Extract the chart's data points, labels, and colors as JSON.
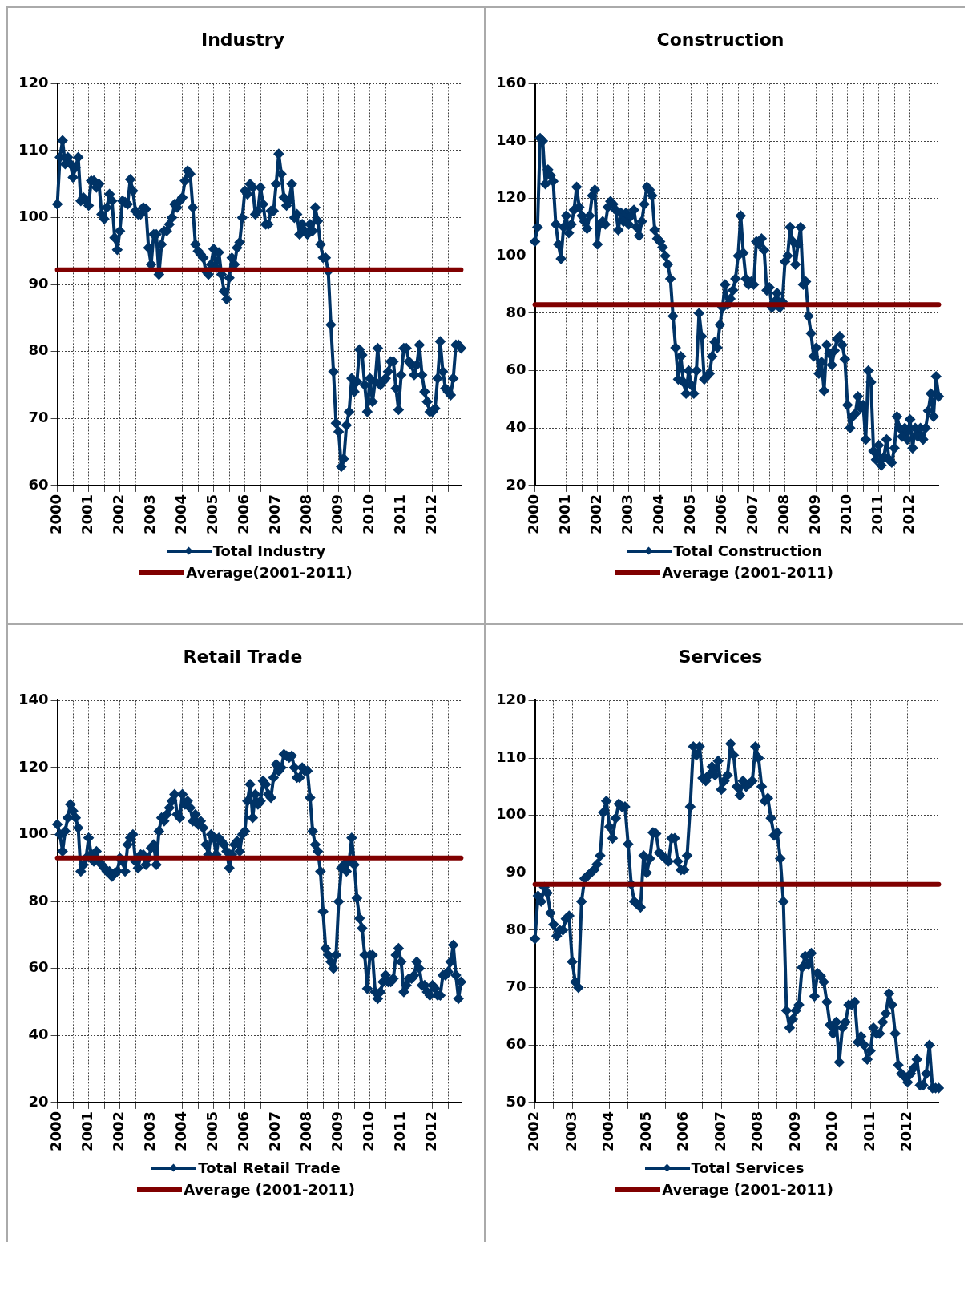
{
  "chart_data": [
    {
      "type": "line",
      "title": "Industry",
      "categories": [
        "2000",
        null,
        null,
        null,
        null,
        null,
        null,
        null,
        null,
        null,
        null,
        null,
        "2001",
        null,
        null,
        null,
        null,
        null,
        null,
        null,
        null,
        null,
        null,
        null,
        "2002",
        null,
        null,
        null,
        null,
        null,
        null,
        null,
        null,
        null,
        null,
        null,
        "2003",
        null,
        null,
        null,
        null,
        null,
        null,
        null,
        null,
        null,
        null,
        null,
        "2004",
        null,
        null,
        null,
        null,
        null,
        null,
        null,
        null,
        null,
        null,
        null,
        "2005",
        null,
        null,
        null,
        null,
        null,
        null,
        null,
        null,
        null,
        null,
        null,
        "2006",
        null,
        null,
        null,
        null,
        null,
        null,
        null,
        null,
        null,
        null,
        null,
        "2007",
        null,
        null,
        null,
        null,
        null,
        null,
        null,
        null,
        null,
        null,
        null,
        "2008",
        null,
        null,
        null,
        null,
        null,
        null,
        null,
        null,
        null,
        null,
        null,
        "2009",
        null,
        null,
        null,
        null,
        null,
        null,
        null,
        null,
        null,
        null,
        null,
        "2010",
        null,
        null,
        null,
        null,
        null,
        null,
        null,
        null,
        null,
        null,
        null,
        "2011",
        null,
        null,
        null,
        null,
        null,
        null,
        null,
        null,
        null,
        null,
        null,
        "2012",
        null,
        null,
        null,
        null,
        null,
        null,
        null,
        null,
        null,
        null,
        null
      ],
      "series": [
        {
          "name": "Total Industry",
          "color": "#003366",
          "values": [
            102,
            109,
            111.5,
            108,
            109,
            108,
            106,
            107.5,
            109,
            102.5,
            103,
            102.5,
            101.8,
            105.5,
            105.5,
            104.5,
            105,
            100.5,
            99.8,
            101.5,
            103.5,
            102.5,
            97,
            95.2,
            98,
            102.5,
            102.3,
            102,
            105.7,
            104,
            101,
            100.5,
            100.5,
            101.5,
            101.3,
            95.5,
            93,
            97.5,
            97.5,
            91.5,
            96,
            98,
            98,
            99,
            100,
            102,
            101.5,
            102.5,
            103,
            105.5,
            107,
            106.5,
            101.5,
            96,
            95,
            94.5,
            94,
            92,
            91.5,
            93,
            95.3,
            92.5,
            94.8,
            91.5,
            89,
            87.8,
            91,
            94,
            93,
            95.5,
            96.3,
            100,
            104,
            103.5,
            105,
            104.5,
            100.5,
            101,
            104.5,
            102,
            99,
            99,
            101,
            101,
            105,
            109.5,
            106.5,
            103,
            101.8,
            102.5,
            105,
            100,
            100.5,
            97.5,
            99,
            98,
            97.5,
            99,
            98,
            101.5,
            99.5,
            96,
            94,
            94,
            92,
            84,
            77,
            69.3,
            68,
            62.8,
            64,
            69,
            71,
            76,
            74,
            75.5,
            80.3,
            79.5,
            75,
            71,
            76,
            72.5,
            75.5,
            80.5,
            75,
            75.5,
            76,
            77,
            78.5,
            78.5,
            74.5,
            71.3,
            76.5,
            80.5,
            80.5,
            78.5,
            78,
            76.5,
            78,
            81,
            76.5,
            74,
            72.5,
            71,
            71,
            71.5,
            76,
            81.5,
            77,
            74.5,
            74,
            73.5,
            76,
            81,
            81,
            80.5
          ]
        }
      ],
      "ref_lines": [
        {
          "axis": "y",
          "value": 92.2,
          "label": "Average(2001-2011)",
          "color": "#800000"
        }
      ],
      "ylim": [
        60,
        120
      ],
      "yticks": [
        60,
        70,
        80,
        90,
        100,
        110,
        120
      ],
      "grid": true,
      "legend": "bottom",
      "marker": "diamond"
    },
    {
      "type": "line",
      "title": "Construction",
      "categories": [
        "2000",
        null,
        null,
        null,
        null,
        null,
        null,
        null,
        null,
        null,
        null,
        null,
        "2001",
        null,
        null,
        null,
        null,
        null,
        null,
        null,
        null,
        null,
        null,
        null,
        "2002",
        null,
        null,
        null,
        null,
        null,
        null,
        null,
        null,
        null,
        null,
        null,
        "2003",
        null,
        null,
        null,
        null,
        null,
        null,
        null,
        null,
        null,
        null,
        null,
        "2004",
        null,
        null,
        null,
        null,
        null,
        null,
        null,
        null,
        null,
        null,
        null,
        "2005",
        null,
        null,
        null,
        null,
        null,
        null,
        null,
        null,
        null,
        null,
        null,
        "2006",
        null,
        null,
        null,
        null,
        null,
        null,
        null,
        null,
        null,
        null,
        null,
        "2007",
        null,
        null,
        null,
        null,
        null,
        null,
        null,
        null,
        null,
        null,
        null,
        "2008",
        null,
        null,
        null,
        null,
        null,
        null,
        null,
        null,
        null,
        null,
        null,
        "2009",
        null,
        null,
        null,
        null,
        null,
        null,
        null,
        null,
        null,
        null,
        null,
        "2010",
        null,
        null,
        null,
        null,
        null,
        null,
        null,
        null,
        null,
        null,
        null,
        "2011",
        null,
        null,
        null,
        null,
        null,
        null,
        null,
        null,
        null,
        null,
        null,
        "2012",
        null,
        null,
        null,
        null,
        null,
        null,
        null,
        null,
        null,
        null,
        null
      ],
      "series": [
        {
          "name": "Total Construction",
          "color": "#003366",
          "values": [
            105,
            110,
            141,
            140,
            125,
            130,
            128,
            126,
            111,
            104,
            99,
            110,
            114,
            108,
            111,
            116,
            124,
            117,
            114,
            112,
            109.5,
            114,
            121,
            123,
            104,
            111,
            112,
            111,
            117,
            119,
            118,
            116,
            109,
            115,
            112,
            115,
            111,
            114,
            116,
            110,
            107,
            112,
            118,
            124,
            123,
            121,
            109,
            106,
            105,
            103,
            100,
            97,
            92,
            79,
            68,
            57,
            65,
            56,
            52,
            60,
            55,
            52,
            60,
            80,
            72,
            57,
            58,
            59,
            65,
            70,
            68,
            76,
            82,
            90,
            83,
            85,
            88,
            92,
            100,
            114,
            101,
            92,
            90,
            91,
            90,
            105,
            104,
            106,
            102,
            88,
            89,
            82,
            84,
            87,
            82,
            84,
            98,
            100,
            110,
            105,
            97,
            104,
            110,
            90,
            91,
            79,
            73,
            65,
            68,
            59,
            63,
            53,
            69,
            66,
            62,
            67,
            71,
            72,
            69,
            64,
            48,
            40,
            44,
            45,
            51,
            47,
            48,
            36,
            60,
            56,
            32,
            29,
            34,
            27,
            30,
            36,
            29,
            28,
            33,
            44,
            40,
            37,
            40,
            36,
            43,
            33,
            40,
            37,
            40,
            36,
            40,
            46,
            52,
            44,
            58,
            51
          ]
        }
      ],
      "ref_lines": [
        {
          "axis": "y",
          "value": 83,
          "label": "Average (2001-2011)",
          "color": "#800000"
        }
      ],
      "ylim": [
        20,
        160
      ],
      "yticks": [
        20,
        40,
        60,
        80,
        100,
        120,
        140,
        160
      ],
      "grid": true,
      "legend": "bottom",
      "marker": "diamond"
    },
    {
      "type": "line",
      "title": "Retail Trade",
      "categories": [
        "2000",
        null,
        null,
        null,
        null,
        null,
        null,
        null,
        null,
        null,
        null,
        null,
        "2001",
        null,
        null,
        null,
        null,
        null,
        null,
        null,
        null,
        null,
        null,
        null,
        "2002",
        null,
        null,
        null,
        null,
        null,
        null,
        null,
        null,
        null,
        null,
        null,
        "2003",
        null,
        null,
        null,
        null,
        null,
        null,
        null,
        null,
        null,
        null,
        null,
        "2004",
        null,
        null,
        null,
        null,
        null,
        null,
        null,
        null,
        null,
        null,
        null,
        "2005",
        null,
        null,
        null,
        null,
        null,
        null,
        null,
        null,
        null,
        null,
        null,
        "2006",
        null,
        null,
        null,
        null,
        null,
        null,
        null,
        null,
        null,
        null,
        null,
        "2007",
        null,
        null,
        null,
        null,
        null,
        null,
        null,
        null,
        null,
        null,
        null,
        "2008",
        null,
        null,
        null,
        null,
        null,
        null,
        null,
        null,
        null,
        null,
        null,
        "2009",
        null,
        null,
        null,
        null,
        null,
        null,
        null,
        null,
        null,
        null,
        null,
        "2010",
        null,
        null,
        null,
        null,
        null,
        null,
        null,
        null,
        null,
        null,
        null,
        "2011",
        null,
        null,
        null,
        null,
        null,
        null,
        null,
        null,
        null,
        null,
        null,
        "2012",
        null,
        null,
        null,
        null,
        null,
        null,
        null,
        null,
        null,
        null,
        null
      ],
      "series": [
        {
          "name": "Total Retail Trade",
          "color": "#003366",
          "values": [
            103,
            100,
            95,
            101,
            105,
            109,
            107,
            105,
            102,
            89,
            91,
            93,
            99,
            94,
            92,
            95,
            92,
            91,
            90,
            89,
            89,
            87.5,
            88.5,
            89,
            93,
            92,
            89,
            97,
            99,
            100,
            92,
            90,
            94,
            94,
            91,
            93,
            96,
            97,
            91,
            101,
            105,
            104,
            106,
            108,
            110,
            112,
            106,
            105,
            112,
            109,
            110,
            108,
            104,
            106,
            103,
            104,
            102,
            97,
            94,
            100,
            99,
            94,
            99,
            98,
            97,
            95,
            90,
            94,
            97,
            98,
            95,
            100,
            101,
            110,
            115,
            105,
            112,
            109,
            110,
            116,
            115,
            112,
            111,
            117,
            121,
            119,
            120,
            124,
            123.5,
            123,
            123.5,
            120,
            117,
            117,
            120,
            119,
            119,
            111,
            101,
            97,
            95,
            89,
            77,
            66,
            64,
            62,
            60,
            64,
            80,
            90,
            91,
            89,
            92,
            99,
            91,
            81,
            75,
            72,
            64,
            54,
            64,
            64,
            53,
            51,
            53,
            56,
            58,
            56,
            56,
            57,
            64,
            66,
            62,
            53,
            55,
            57,
            57,
            58,
            62,
            60,
            55,
            55,
            53,
            52,
            55,
            54,
            52,
            52,
            58,
            58,
            59,
            62,
            67,
            58,
            51,
            56
          ]
        }
      ],
      "ref_lines": [
        {
          "axis": "y",
          "value": 93,
          "label": "Average (2001-2011)",
          "color": "#800000"
        }
      ],
      "ylim": [
        20,
        140
      ],
      "yticks": [
        20,
        40,
        60,
        80,
        100,
        120,
        140
      ],
      "grid": true,
      "legend": "bottom",
      "marker": "diamond"
    },
    {
      "type": "line",
      "title": "Services",
      "categories": [
        "2002",
        null,
        null,
        null,
        null,
        null,
        null,
        null,
        null,
        null,
        null,
        null,
        "2003",
        null,
        null,
        null,
        null,
        null,
        null,
        null,
        null,
        null,
        null,
        null,
        "2004",
        null,
        null,
        null,
        null,
        null,
        null,
        null,
        null,
        null,
        null,
        null,
        "2005",
        null,
        null,
        null,
        null,
        null,
        null,
        null,
        null,
        null,
        null,
        null,
        "2006",
        null,
        null,
        null,
        null,
        null,
        null,
        null,
        null,
        null,
        null,
        null,
        "2007",
        null,
        null,
        null,
        null,
        null,
        null,
        null,
        null,
        null,
        null,
        null,
        "2008",
        null,
        null,
        null,
        null,
        null,
        null,
        null,
        null,
        null,
        null,
        null,
        "2009",
        null,
        null,
        null,
        null,
        null,
        null,
        null,
        null,
        null,
        null,
        null,
        "2010",
        null,
        null,
        null,
        null,
        null,
        null,
        null,
        null,
        null,
        null,
        null,
        "2011",
        null,
        null,
        null,
        null,
        null,
        null,
        null,
        null,
        null,
        null,
        null,
        "2012",
        null,
        null,
        null,
        null,
        null,
        null,
        null,
        null,
        null,
        null
      ],
      "series": [
        {
          "name": "Total Services",
          "color": "#003366",
          "values": [
            78.5,
            86,
            85,
            87.5,
            86.5,
            83,
            81,
            79,
            80,
            80,
            82,
            82.5,
            74.5,
            71,
            70,
            85,
            89,
            89.5,
            90,
            90.5,
            91.5,
            93,
            100.5,
            102.5,
            98,
            96,
            99.5,
            102,
            101.5,
            101.5,
            95,
            88,
            85,
            84.5,
            84,
            93,
            90,
            92.5,
            97,
            96.8,
            93.5,
            93,
            92.5,
            92,
            96,
            96,
            92,
            90.5,
            90.5,
            93,
            101.5,
            112,
            110.5,
            112,
            106.5,
            106,
            107,
            108.5,
            107,
            109.5,
            104.5,
            106,
            107,
            112.5,
            110.5,
            105,
            103.5,
            106,
            105,
            105.5,
            106,
            112,
            110,
            105,
            102.5,
            103,
            99.5,
            96.5,
            97,
            92.5,
            85,
            66,
            63,
            64.5,
            66,
            67,
            73.5,
            75.5,
            74,
            76,
            68.5,
            72.5,
            72,
            71,
            67.5,
            63.5,
            62,
            64,
            57,
            63,
            64,
            67,
            67,
            67.5,
            60.5,
            61.5,
            60,
            57.5,
            59,
            63,
            62,
            62,
            64,
            65.5,
            69,
            67,
            62,
            56.5,
            55,
            54.5,
            53.5,
            55,
            56,
            57.5,
            53,
            53,
            55,
            60,
            52.5,
            52.5,
            52.5
          ]
        }
      ],
      "ref_lines": [
        {
          "axis": "y",
          "value": 88,
          "label": "Average (2001-2011)",
          "color": "#800000"
        }
      ],
      "ylim": [
        50,
        120
      ],
      "yticks": [
        50,
        60,
        70,
        80,
        90,
        100,
        110,
        120
      ],
      "grid": true,
      "legend": "bottom",
      "marker": "diamond"
    }
  ]
}
